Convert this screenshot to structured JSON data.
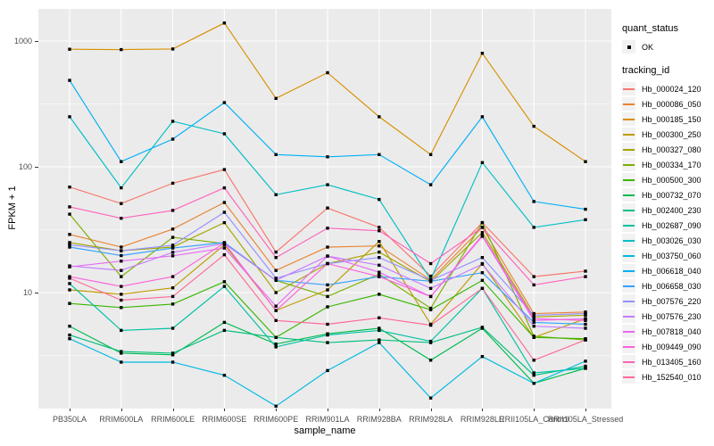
{
  "axes": {
    "y_title": "FPKM + 1",
    "x_title": "sample_name",
    "y_ticks": [
      {
        "label": "1000",
        "value": 1000
      },
      {
        "label": "100",
        "value": 100
      },
      {
        "label": "10",
        "value": 10
      }
    ]
  },
  "legend": {
    "quant_status_title": "quant_status",
    "quant_status_entry": "OK",
    "tracking_title": "tracking_id"
  },
  "chart_data": {
    "type": "line",
    "title": "",
    "xlabel": "sample_name",
    "ylabel": "FPKM + 1",
    "y_scale": "log10",
    "ylim": [
      1.2,
      1800
    ],
    "grid": true,
    "legend_position": "right",
    "point_color": "#000000",
    "panel_background": "#EBEBEB",
    "quant_status": {
      "title": "quant_status",
      "entries": [
        "OK"
      ]
    },
    "categories": [
      "PB350LA",
      "RRIM600LA",
      "RRIM600LE",
      "RRIM600SE",
      "RRIM600PE",
      "RRIM901LA",
      "RRIM928BA",
      "RRIM928LA",
      "RRIM928LE",
      "RRII105LA_Control",
      "RRII105LA_Stressed"
    ],
    "series": [
      {
        "name": "Hb_000024_120",
        "color": "#F8766D",
        "values": [
          69,
          51,
          74,
          95,
          21,
          47,
          33,
          13.5,
          36,
          13.4,
          14.8
        ]
      },
      {
        "name": "Hb_000086_050",
        "color": "#EA8331",
        "values": [
          29,
          23,
          32,
          52,
          15,
          23,
          23.5,
          12.6,
          33,
          6.8,
          7.0
        ]
      },
      {
        "name": "Hb_000185_150",
        "color": "#D89000",
        "values": [
          860,
          855,
          865,
          1390,
          350,
          560,
          250,
          125,
          800,
          210,
          110
        ]
      },
      {
        "name": "Hb_000300_250",
        "color": "#C09B00",
        "values": [
          10.5,
          9.7,
          10.9,
          24,
          7.2,
          10.5,
          25.5,
          5.6,
          17,
          4.4,
          6.2
        ]
      },
      {
        "name": "Hb_000327_080",
        "color": "#A3A500",
        "values": [
          25,
          21.5,
          23,
          36,
          10,
          17,
          21,
          12.2,
          30,
          6.4,
          6.6
        ]
      },
      {
        "name": "Hb_000334_170",
        "color": "#7CAE00",
        "values": [
          42,
          13.4,
          27.5,
          24.5,
          12.5,
          9.3,
          14,
          7.5,
          36,
          4.5,
          4.2
        ]
      },
      {
        "name": "Hb_000500_300",
        "color": "#39B600",
        "values": [
          8.2,
          7.6,
          8.1,
          12.2,
          4.4,
          7.7,
          9.7,
          7.3,
          12.5,
          4.4,
          4.3
        ]
      },
      {
        "name": "Hb_000732_070",
        "color": "#00BB4E",
        "values": [
          5.4,
          3.3,
          3.2,
          5.8,
          3.9,
          4.7,
          5.2,
          2.9,
          5.2,
          1.9,
          2.5
        ]
      },
      {
        "name": "Hb_002400_230",
        "color": "#00BF7D",
        "values": [
          4.6,
          3.4,
          3.3,
          5.0,
          4.4,
          4.0,
          4.2,
          4.0,
          5.3,
          2.2,
          2.6
        ]
      },
      {
        "name": "Hb_002687_090",
        "color": "#00C1A3",
        "values": [
          11.8,
          5.0,
          5.2,
          11.2,
          3.7,
          4.6,
          5.0,
          4.1,
          10.8,
          2.3,
          2.5
        ]
      },
      {
        "name": "Hb_003026_030",
        "color": "#00BFC4",
        "values": [
          250,
          68,
          230,
          183,
          60,
          72,
          55,
          12.7,
          108,
          33,
          38
        ]
      },
      {
        "name": "Hb_003750_060",
        "color": "#00BAE0",
        "values": [
          4.3,
          2.8,
          2.8,
          2.2,
          1.25,
          2.4,
          4.0,
          1.45,
          3.1,
          1.9,
          2.85
        ]
      },
      {
        "name": "Hb_006618_040",
        "color": "#00B0F6",
        "values": [
          487,
          110,
          166,
          324,
          125,
          120,
          125,
          72,
          250,
          53,
          46
        ]
      },
      {
        "name": "Hb_006658_030",
        "color": "#35A2FF",
        "values": [
          23,
          19.7,
          22.6,
          25,
          12.5,
          11.5,
          13.4,
          12.3,
          14.4,
          5.8,
          5.6
        ]
      },
      {
        "name": "Hb_007576_220",
        "color": "#9590FF",
        "values": [
          24,
          21.5,
          23.8,
          43.5,
          13,
          17,
          19,
          12.5,
          19,
          6.6,
          6.8
        ]
      },
      {
        "name": "Hb_007576_230",
        "color": "#C77CFF",
        "values": [
          16.3,
          15,
          20.9,
          24.5,
          12.5,
          19.5,
          16.5,
          10.8,
          16.8,
          5.4,
          5.2
        ]
      },
      {
        "name": "Hb_007818_040",
        "color": "#E76BF3",
        "values": [
          16,
          17.8,
          19.6,
          22.6,
          7.8,
          19.5,
          14.5,
          9.3,
          28,
          6.0,
          6.2
        ]
      },
      {
        "name": "Hb_009449_090",
        "color": "#FA62DB",
        "values": [
          13.4,
          11.2,
          13.4,
          24.8,
          7.2,
          17,
          13.4,
          9.3,
          28.5,
          6.2,
          6.0
        ]
      },
      {
        "name": "Hb_013405_160",
        "color": "#FF62BC",
        "values": [
          48,
          39,
          45,
          68,
          19,
          32.5,
          31,
          17,
          33,
          11.5,
          13.4
        ]
      },
      {
        "name": "Hb_152540_010",
        "color": "#FF6A98",
        "values": [
          13,
          8.7,
          9.3,
          20,
          6.0,
          5.6,
          6.3,
          5.5,
          10.8,
          2.9,
          4.2
        ]
      }
    ]
  }
}
